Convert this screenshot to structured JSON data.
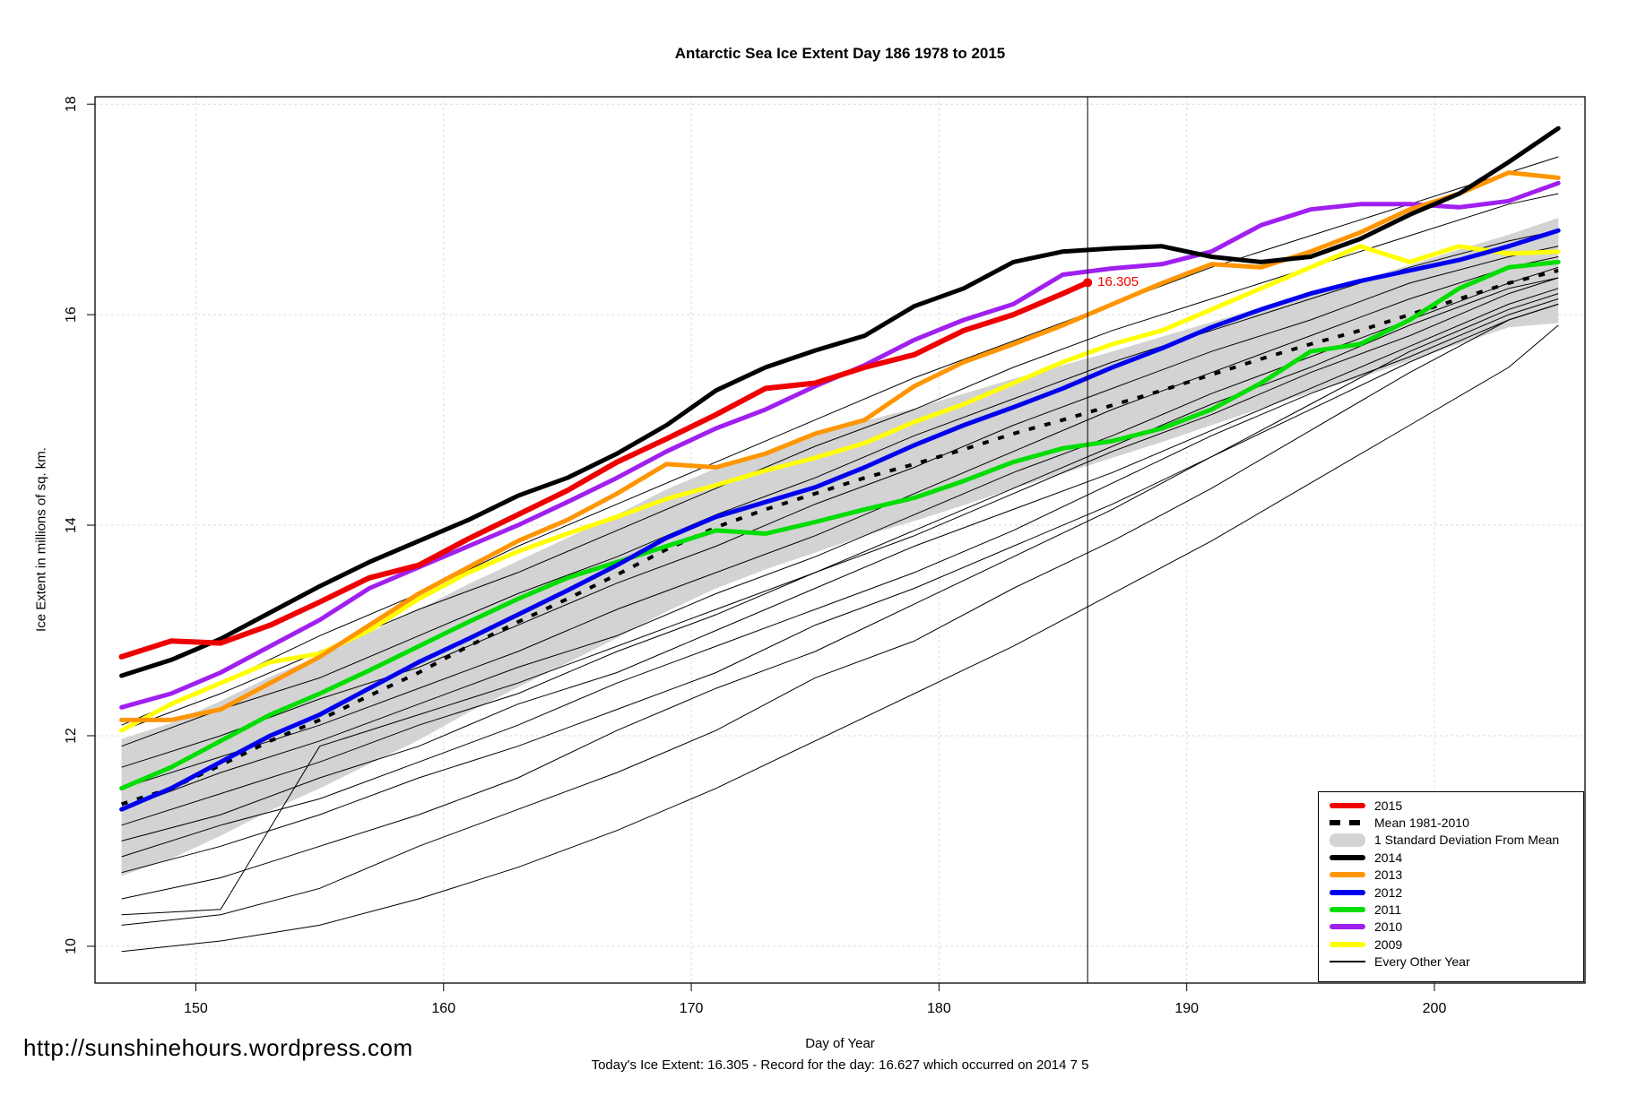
{
  "title": "Antarctic Sea Ice Extent Day 186 1978 to 2015",
  "url_watermark": "http://sunshinehours.wordpress.com",
  "footnote": "Today's Ice Extent: 16.305  - Record for the day: 16.627 which occurred on 2014 7 5",
  "annotation": {
    "text": "16.305",
    "day": 186,
    "value": 16.305,
    "color": "#ee0000"
  },
  "axes": {
    "x_label": "Day of Year",
    "y_label": "Ice Extent in millions of sq. km.",
    "x_ticks": [
      150,
      160,
      170,
      180,
      190,
      200
    ],
    "y_ticks": [
      10,
      12,
      14,
      16,
      18
    ]
  },
  "legend": {
    "items": [
      {
        "label": "2015",
        "color": "#ee0000",
        "swatch": "thick"
      },
      {
        "label": "Mean 1981-2010",
        "color": "#000000",
        "swatch": "dashes"
      },
      {
        "label": "1 Standard Deviation From Mean",
        "color": "#d3d3d3",
        "swatch": "band"
      },
      {
        "label": "2014",
        "color": "#000000",
        "swatch": "thick"
      },
      {
        "label": "2013",
        "color": "#ff9500",
        "swatch": "thick"
      },
      {
        "label": "2012",
        "color": "#0000ee",
        "swatch": "thick"
      },
      {
        "label": "2011",
        "color": "#00dd00",
        "swatch": "thick"
      },
      {
        "label": "2010",
        "color": "#a020f0",
        "swatch": "thick"
      },
      {
        "label": "2009",
        "color": "#ffff00",
        "swatch": "thick"
      },
      {
        "label": "Every Other Year",
        "color": "#000000",
        "swatch": "thin"
      }
    ]
  },
  "chart_data": {
    "type": "line",
    "title": "Antarctic Sea Ice Extent Day 186 1978 to 2015",
    "xlabel": "Day of Year",
    "ylabel": "Ice Extent in millions of sq. km.",
    "x_range": [
      145.93,
      206.08
    ],
    "y_range": [
      9.65,
      18.07
    ],
    "grid": true,
    "legend_position": "bottom-right",
    "vertical_line_day": 186,
    "endpoint": {
      "day": 186,
      "value": 16.305,
      "color": "#ee0000"
    },
    "days": [
      147,
      149,
      151,
      153,
      155,
      157,
      159,
      161,
      163,
      165,
      167,
      169,
      171,
      173,
      175,
      177,
      179,
      181,
      183,
      185,
      187,
      189,
      191,
      193,
      195,
      197,
      199,
      201,
      203,
      205
    ],
    "days_2015": [
      147,
      149,
      151,
      153,
      155,
      157,
      159,
      161,
      163,
      165,
      167,
      169,
      171,
      173,
      175,
      177,
      179,
      181,
      183,
      185,
      186
    ],
    "days_other": [
      147,
      151,
      155,
      159,
      163,
      167,
      171,
      175,
      179,
      183,
      187,
      191,
      195,
      199,
      203,
      205
    ],
    "series": [
      {
        "name": "2009",
        "color": "#ffff00",
        "width": 5,
        "x_key": "days",
        "values": [
          12.05,
          12.3,
          12.5,
          12.7,
          12.78,
          13.0,
          13.3,
          13.55,
          13.75,
          13.92,
          14.08,
          14.25,
          14.38,
          14.52,
          14.64,
          14.78,
          14.98,
          15.15,
          15.35,
          15.55,
          15.72,
          15.85,
          16.05,
          16.25,
          16.45,
          16.65,
          16.5,
          16.65,
          16.58,
          16.6
        ]
      },
      {
        "name": "2011",
        "color": "#00dd00",
        "width": 5,
        "x_key": "days",
        "values": [
          11.5,
          11.7,
          11.95,
          12.2,
          12.4,
          12.62,
          12.85,
          13.08,
          13.3,
          13.5,
          13.65,
          13.8,
          13.95,
          13.92,
          14.03,
          14.15,
          14.26,
          14.42,
          14.6,
          14.73,
          14.8,
          14.92,
          15.1,
          15.35,
          15.65,
          15.72,
          15.95,
          16.25,
          16.45,
          16.5
        ]
      },
      {
        "name": "2010",
        "color": "#a020f0",
        "width": 5,
        "x_key": "days",
        "values": [
          12.27,
          12.4,
          12.6,
          12.85,
          13.1,
          13.4,
          13.6,
          13.8,
          14.0,
          14.22,
          14.45,
          14.7,
          14.92,
          15.1,
          15.32,
          15.52,
          15.76,
          15.95,
          16.1,
          16.38,
          16.44,
          16.48,
          16.6,
          16.85,
          17.0,
          17.05,
          17.05,
          17.02,
          17.08,
          17.25
        ]
      },
      {
        "name": "2012",
        "color": "#0000ee",
        "width": 5,
        "x_key": "days",
        "values": [
          11.3,
          11.5,
          11.75,
          12.0,
          12.2,
          12.45,
          12.7,
          12.92,
          13.15,
          13.38,
          13.62,
          13.88,
          14.08,
          14.22,
          14.36,
          14.55,
          14.76,
          14.95,
          15.12,
          15.3,
          15.5,
          15.68,
          15.88,
          16.05,
          16.2,
          16.32,
          16.42,
          16.52,
          16.65,
          16.8
        ]
      },
      {
        "name": "2013",
        "color": "#ff9500",
        "width": 5,
        "x_key": "days",
        "values": [
          12.15,
          12.15,
          12.25,
          12.5,
          12.75,
          13.05,
          13.35,
          13.6,
          13.85,
          14.05,
          14.3,
          14.58,
          14.55,
          14.68,
          14.87,
          15.0,
          15.32,
          15.55,
          15.72,
          15.9,
          16.1,
          16.3,
          16.48,
          16.45,
          16.6,
          16.78,
          17.0,
          17.15,
          17.35,
          17.3
        ]
      },
      {
        "name": "2014",
        "color": "#000000",
        "width": 5,
        "x_key": "days",
        "values": [
          12.57,
          12.72,
          12.92,
          13.17,
          13.42,
          13.65,
          13.85,
          14.05,
          14.28,
          14.45,
          14.68,
          14.95,
          15.28,
          15.5,
          15.66,
          15.8,
          16.08,
          16.25,
          16.5,
          16.6,
          16.63,
          16.65,
          16.55,
          16.5,
          16.55,
          16.72,
          16.95,
          17.15,
          17.45,
          17.77
        ]
      },
      {
        "name": "2015",
        "color": "#ee0000",
        "width": 6,
        "x_key": "days_2015",
        "values": [
          12.75,
          12.9,
          12.88,
          13.05,
          13.27,
          13.5,
          13.62,
          13.87,
          14.1,
          14.33,
          14.6,
          14.82,
          15.05,
          15.3,
          15.35,
          15.5,
          15.62,
          15.85,
          16.0,
          16.2,
          16.305
        ]
      }
    ],
    "mean_1981_2010": {
      "name": "Mean 1981-2010",
      "color": "#000000",
      "width": 4,
      "x_key": "days",
      "values": [
        11.35,
        11.5,
        11.72,
        11.95,
        12.15,
        12.38,
        12.6,
        12.85,
        13.08,
        13.3,
        13.53,
        13.77,
        13.98,
        14.15,
        14.3,
        14.45,
        14.58,
        14.72,
        14.87,
        15.0,
        15.14,
        15.28,
        15.43,
        15.58,
        15.72,
        15.85,
        16.0,
        16.15,
        16.3,
        16.42
      ]
    },
    "sd_band": {
      "name": "1 Standard Deviation From Mean",
      "color": "#d3d3d3",
      "x_key": "days",
      "top": [
        11.97,
        12.12,
        12.33,
        12.56,
        12.76,
        12.98,
        13.2,
        13.44,
        13.66,
        13.88,
        14.1,
        14.34,
        14.54,
        14.7,
        14.85,
        14.99,
        15.11,
        15.25,
        15.39,
        15.52,
        15.65,
        15.79,
        15.93,
        16.07,
        16.21,
        16.33,
        16.47,
        16.62,
        16.76,
        16.92
      ],
      "bottom": [
        10.67,
        10.83,
        11.05,
        11.29,
        11.5,
        11.73,
        11.96,
        12.22,
        12.46,
        12.69,
        12.93,
        13.18,
        13.4,
        13.58,
        13.74,
        13.9,
        14.04,
        14.19,
        14.35,
        14.49,
        14.64,
        14.79,
        14.95,
        15.11,
        15.26,
        15.4,
        15.56,
        15.72,
        15.88,
        15.92
      ]
    },
    "other_years": {
      "name": "Every Other Year",
      "color": "#000000",
      "width": 1,
      "x_key": "days_other",
      "lines": [
        [
          9.95,
          10.05,
          10.2,
          10.45,
          10.75,
          11.1,
          11.5,
          11.95,
          12.4,
          12.85,
          13.35,
          13.85,
          14.4,
          14.95,
          15.5,
          15.9
        ],
        [
          10.2,
          10.3,
          10.55,
          10.95,
          11.3,
          11.65,
          12.05,
          12.55,
          12.9,
          13.4,
          13.85,
          14.35,
          14.9,
          15.45,
          15.95,
          16.1
        ],
        [
          10.45,
          10.65,
          10.95,
          11.25,
          11.6,
          12.05,
          12.45,
          12.8,
          13.25,
          13.7,
          14.15,
          14.65,
          15.15,
          15.65,
          16.05,
          16.2
        ],
        [
          10.3,
          10.35,
          11.9,
          12.2,
          12.5,
          12.85,
          13.2,
          13.55,
          13.95,
          14.35,
          14.75,
          15.15,
          15.5,
          15.9,
          16.25,
          16.35
        ],
        [
          10.7,
          10.95,
          11.25,
          11.6,
          11.9,
          12.25,
          12.6,
          13.05,
          13.4,
          13.8,
          14.2,
          14.65,
          15.1,
          15.55,
          15.95,
          16.1
        ],
        [
          10.85,
          11.15,
          11.4,
          11.75,
          12.1,
          12.5,
          12.85,
          13.2,
          13.55,
          13.95,
          14.4,
          14.85,
          15.25,
          15.6,
          16.0,
          16.15
        ],
        [
          11.0,
          11.25,
          11.6,
          11.9,
          12.3,
          12.6,
          13.0,
          13.4,
          13.8,
          14.15,
          14.5,
          14.9,
          15.3,
          15.7,
          16.1,
          16.25
        ],
        [
          11.15,
          11.45,
          11.75,
          12.1,
          12.4,
          12.8,
          13.15,
          13.55,
          13.9,
          14.3,
          14.7,
          15.05,
          15.45,
          15.8,
          16.2,
          16.35
        ],
        [
          11.3,
          11.65,
          11.95,
          12.3,
          12.65,
          12.95,
          13.35,
          13.7,
          14.1,
          14.5,
          14.85,
          15.25,
          15.6,
          15.95,
          16.3,
          16.45
        ],
        [
          11.5,
          11.8,
          12.1,
          12.45,
          12.8,
          13.2,
          13.55,
          13.9,
          14.3,
          14.7,
          15.1,
          15.45,
          15.8,
          16.15,
          16.45,
          16.55
        ],
        [
          11.7,
          12.0,
          12.35,
          12.65,
          13.05,
          13.45,
          13.8,
          14.2,
          14.55,
          14.95,
          15.3,
          15.65,
          15.95,
          16.3,
          16.55,
          16.65
        ],
        [
          11.9,
          12.25,
          12.55,
          12.95,
          13.35,
          13.7,
          14.1,
          14.45,
          14.85,
          15.2,
          15.55,
          15.85,
          16.15,
          16.45,
          16.7,
          16.8
        ],
        [
          12.05,
          12.4,
          12.8,
          13.2,
          13.55,
          13.95,
          14.35,
          14.75,
          15.1,
          15.5,
          15.85,
          16.15,
          16.45,
          16.75,
          17.05,
          17.15
        ],
        [
          12.1,
          12.5,
          12.95,
          13.35,
          13.8,
          14.2,
          14.6,
          15.0,
          15.4,
          15.75,
          16.1,
          16.45,
          16.75,
          17.05,
          17.35,
          17.5
        ]
      ]
    }
  }
}
